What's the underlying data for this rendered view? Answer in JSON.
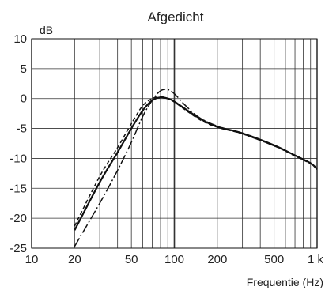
{
  "chart_data": {
    "type": "line",
    "title": "Afgedicht",
    "ylabel": "dB",
    "xlabel": "Frequentie (Hz)",
    "x_scale": "log",
    "xlim": [
      10,
      1000
    ],
    "ylim": [
      -25,
      10
    ],
    "grid": true,
    "x_ticks": [
      {
        "value": 10,
        "label": "10"
      },
      {
        "value": 20,
        "label": "20"
      },
      {
        "value": 50,
        "label": "50"
      },
      {
        "value": 100,
        "label": "100"
      },
      {
        "value": 200,
        "label": "200"
      },
      {
        "value": 500,
        "label": "500"
      },
      {
        "value": 1000,
        "label": "1 k"
      }
    ],
    "y_ticks": [
      {
        "value": 10,
        "label": "10"
      },
      {
        "value": 5,
        "label": "5"
      },
      {
        "value": 0,
        "label": "0"
      },
      {
        "value": -5,
        "label": "-5"
      },
      {
        "value": -10,
        "label": "-10"
      },
      {
        "value": -15,
        "label": "-15"
      },
      {
        "value": -20,
        "label": "-20"
      },
      {
        "value": -25,
        "label": "-25"
      }
    ],
    "series": [
      {
        "style": "solid",
        "x": [
          20,
          30,
          40,
          50,
          60,
          70,
          80,
          90,
          100,
          150,
          200,
          300,
          500,
          700,
          900,
          1000
        ],
        "y": [
          -22,
          -14,
          -9,
          -5,
          -2,
          -0.3,
          0.2,
          0,
          -0.5,
          -3.3,
          -4.7,
          -5.8,
          -7.8,
          -9.5,
          -10.8,
          -11.8
        ]
      },
      {
        "style": "dashed",
        "x": [
          20,
          30,
          40,
          50,
          60,
          70,
          80,
          90,
          100,
          150,
          200,
          300,
          500,
          700,
          900,
          1000
        ],
        "y": [
          -21.3,
          -13,
          -8.2,
          -4.2,
          -1.2,
          0,
          0.3,
          0,
          -0.6,
          -3.5,
          -4.8,
          -5.9,
          -7.9,
          -9.6,
          -10.9,
          -11.8
        ]
      },
      {
        "style": "dashdot",
        "x": [
          20,
          30,
          40,
          50,
          60,
          70,
          80,
          90,
          100,
          120,
          150,
          200,
          300,
          500,
          700,
          900,
          1000
        ],
        "y": [
          -24.7,
          -17.5,
          -12,
          -7.3,
          -3,
          -0.3,
          1.3,
          1.5,
          0.8,
          -1.2,
          -3.2,
          -4.6,
          -5.9,
          -7.9,
          -9.5,
          -10.8,
          -11.8
        ]
      }
    ]
  }
}
